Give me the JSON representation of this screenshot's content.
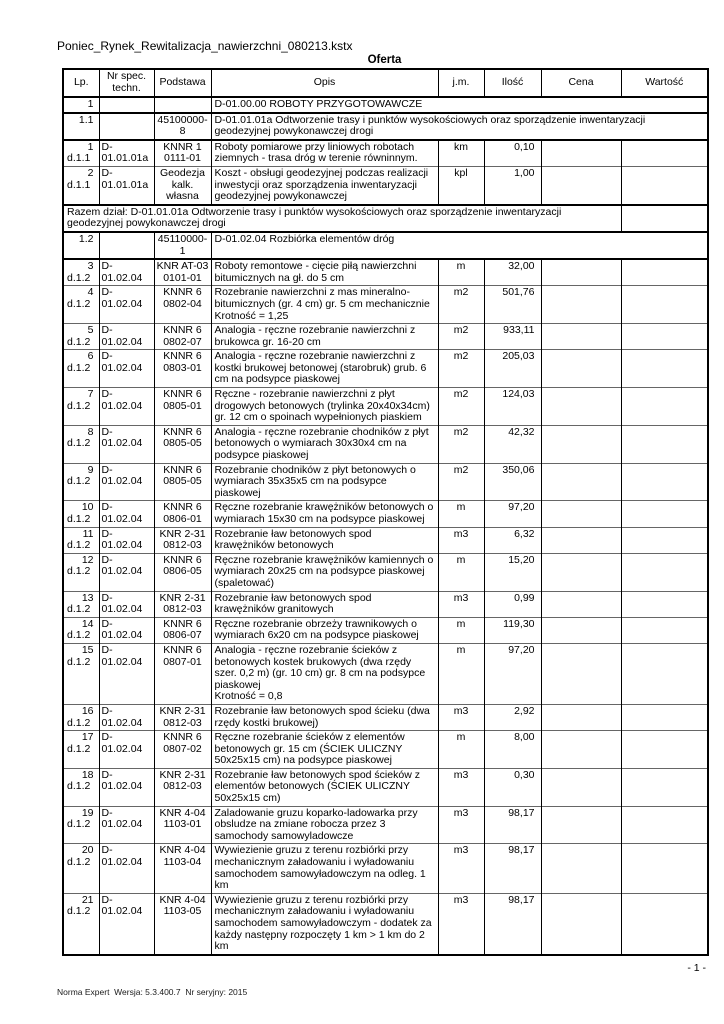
{
  "page": {
    "title": "Poniec_Rynek_Rewitalizacja_nawierzchni_080213.kstx",
    "subtitle": "Oferta",
    "footer": "Norma Expert  Wersja: 5.3.400.7  Nr seryjny: 2015",
    "page_number": "- 1 -"
  },
  "table": {
    "columns": [
      "Lp.",
      "Nr spec. techn.",
      "Podstawa",
      "Opis",
      "j.m.",
      "Ilość",
      "Cena",
      "Wartość"
    ],
    "rows": [
      {
        "type": "section",
        "lp": "1",
        "podstawa": "",
        "opis": "D-01.00.00 ROBOTY PRZYGOTOWAWCZE"
      },
      {
        "type": "section",
        "lp": "1.1",
        "podstawa": "45100000-8",
        "opis": "D-01.01.01a Odtworzenie trasy i punktów wysokościowych oraz sporządzenie inwentaryzacji geodezyjnej powykonawczej drogi"
      },
      {
        "type": "item",
        "lp": "1",
        "dz": "d.1.1",
        "spec": "D-01.01.01a",
        "podstawa": [
          "KNNR 1",
          "0111-01"
        ],
        "opis": "Roboty pomiarowe przy liniowych robotach ziemnych - trasa dróg w terenie równinnym.",
        "jm": "km",
        "ilosc": "0,10"
      },
      {
        "type": "item",
        "lp": "2",
        "dz": "d.1.1",
        "spec": "D-01.01.01a",
        "podstawa": [
          "Geodezja",
          "kalk. własna"
        ],
        "opis": "Koszt - obsługi geodezyjnej podczas realizacji inwestycji oraz sporządzenia inwentaryzacji geodezyjnej powykonawczej",
        "jm": "kpl",
        "ilosc": "1,00"
      },
      {
        "type": "summary",
        "opis": "Razem dział: D-01.01.01a Odtworzenie trasy i punktów wysokościowych oraz sporządzenie inwentaryzacji geodezyjnej powykonawczej drogi"
      },
      {
        "type": "section",
        "lp": "1.2",
        "podstawa": "45110000-1",
        "opis": "D-01.02.04 Rozbiórka elementów dróg"
      },
      {
        "type": "item",
        "lp": "3",
        "dz": "d.1.2",
        "spec": "D-01.02.04",
        "podstawa": [
          "KNR AT-03",
          "0101-01"
        ],
        "opis": "Roboty remontowe - cięcie piłą nawierzchni bitumicznych na gł. do 5 cm",
        "jm": "m",
        "ilosc": "32,00"
      },
      {
        "type": "item",
        "lp": "4",
        "dz": "d.1.2",
        "spec": "D-01.02.04",
        "podstawa": [
          "KNNR 6",
          "0802-04"
        ],
        "opis": "Rozebranie nawierzchni z mas mineralno-bitumicznych (gr. 4 cm) gr. 5 cm mechanicznie",
        "opis2": "Krotność = 1,25",
        "jm": "m2",
        "ilosc": "501,76"
      },
      {
        "type": "item",
        "lp": "5",
        "dz": "d.1.2",
        "spec": "D-01.02.04",
        "podstawa": [
          "KNNR 6",
          "0802-07"
        ],
        "opis": "Analogia - ręczne rozebranie nawierzchni z brukowca gr. 16-20 cm",
        "jm": "m2",
        "ilosc": "933,11"
      },
      {
        "type": "item",
        "lp": "6",
        "dz": "d.1.2",
        "spec": "D-01.02.04",
        "podstawa": [
          "KNNR 6",
          "0803-01"
        ],
        "opis": "Analogia - ręczne rozebranie nawierzchni z kostki brukowej betonowej (starobruk) grub. 6 cm na podsypce piaskowej",
        "jm": "m2",
        "ilosc": "205,03"
      },
      {
        "type": "item",
        "lp": "7",
        "dz": "d.1.2",
        "spec": "D-01.02.04",
        "podstawa": [
          "KNNR 6",
          "0805-01"
        ],
        "opis": "Ręczne - rozebranie nawierzchni z płyt drogowych betonowych (trylinka 20x40x34cm) gr. 12 cm o spoinach wypełnionych piaskiem",
        "jm": "m2",
        "ilosc": "124,03"
      },
      {
        "type": "item",
        "lp": "8",
        "dz": "d.1.2",
        "spec": "D-01.02.04",
        "podstawa": [
          "KNNR 6",
          "0805-05"
        ],
        "opis": "Analogia - ręczne rozebranie chodników z płyt betonowych o wymiarach 30x30x4 cm na podsypce piaskowej",
        "jm": "m2",
        "ilosc": "42,32"
      },
      {
        "type": "item",
        "lp": "9",
        "dz": "d.1.2",
        "spec": "D-01.02.04",
        "podstawa": [
          "KNNR 6",
          "0805-05"
        ],
        "opis": "Rozebranie chodników z płyt betonowych o wymiarach 35x35x5 cm na podsypce piaskowej",
        "jm": "m2",
        "ilosc": "350,06"
      },
      {
        "type": "item",
        "lp": "10",
        "dz": "d.1.2",
        "spec": "D-01.02.04",
        "podstawa": [
          "KNNR 6",
          "0806-01"
        ],
        "opis": "Ręczne rozebranie krawężników betonowych o wymiarach 15x30 cm na podsypce piaskowej",
        "jm": "m",
        "ilosc": "97,20"
      },
      {
        "type": "item",
        "lp": "11",
        "dz": "d.1.2",
        "spec": "D-01.02.04",
        "podstawa": [
          "KNR 2-31",
          "0812-03"
        ],
        "opis": "Rozebranie ław betonowych spod krawężników betonowych",
        "jm": "m3",
        "ilosc": "6,32"
      },
      {
        "type": "item",
        "lp": "12",
        "dz": "d.1.2",
        "spec": "D-01.02.04",
        "podstawa": [
          "KNNR 6",
          "0806-05"
        ],
        "opis": "Ręczne rozebranie krawężników kamiennych o wymiarach 20x25 cm na podsypce piaskowej (spaletować)",
        "jm": "m",
        "ilosc": "15,20"
      },
      {
        "type": "item",
        "lp": "13",
        "dz": "d.1.2",
        "spec": "D-01.02.04",
        "podstawa": [
          "KNR 2-31",
          "0812-03"
        ],
        "opis": "Rozebranie ław betonowych spod krawężników granitowych",
        "jm": "m3",
        "ilosc": "0,99"
      },
      {
        "type": "item",
        "lp": "14",
        "dz": "d.1.2",
        "spec": "D-01.02.04",
        "podstawa": [
          "KNNR 6",
          "0806-07"
        ],
        "opis": "Ręczne rozebranie obrzeży trawnikowych o wymiarach 6x20 cm na podsypce piaskowej",
        "jm": "m",
        "ilosc": "119,30"
      },
      {
        "type": "item",
        "lp": "15",
        "dz": "d.1.2",
        "spec": "D-01.02.04",
        "podstawa": [
          "KNNR 6",
          "0807-01"
        ],
        "opis": "Analogia - ręczne rozebranie ścieków z betonowych kostek brukowych (dwa rzędy szer. 0,2 m) (gr. 10 cm) gr. 8 cm na podsypce piaskowej",
        "opis2": "Krotność = 0,8",
        "jm": "m",
        "ilosc": "97,20"
      },
      {
        "type": "item",
        "lp": "16",
        "dz": "d.1.2",
        "spec": "D-01.02.04",
        "podstawa": [
          "KNR 2-31",
          "0812-03"
        ],
        "opis": "Rozebranie ław betonowych spod ścieku (dwa rzędy kostki brukowej)",
        "jm": "m3",
        "ilosc": "2,92"
      },
      {
        "type": "item",
        "lp": "17",
        "dz": "d.1.2",
        "spec": "D-01.02.04",
        "podstawa": [
          "KNNR 6",
          "0807-02"
        ],
        "opis": "Ręczne rozebranie ścieków z elementów betonowych gr. 15 cm (ŚCIEK ULICZNY 50x25x15 cm) na podsypce piaskowej",
        "jm": "m",
        "ilosc": "8,00"
      },
      {
        "type": "item",
        "lp": "18",
        "dz": "d.1.2",
        "spec": "D-01.02.04",
        "podstawa": [
          "KNR 2-31",
          "0812-03"
        ],
        "opis": "Rozebranie ław betonowych spod ścieków z elementów betonowych (ŚCIEK ULICZNY 50x25x15 cm)",
        "jm": "m3",
        "ilosc": "0,30"
      },
      {
        "type": "item",
        "lp": "19",
        "dz": "d.1.2",
        "spec": "D-01.02.04",
        "podstawa": [
          "KNR 4-04",
          "1103-01"
        ],
        "opis": "Zaladowanie gruzu koparko-ladowarka przy obsludze na zmiane robocza przez 3 samochody samowyladowcze",
        "jm": "m3",
        "ilosc": "98,17"
      },
      {
        "type": "item",
        "lp": "20",
        "dz": "d.1.2",
        "spec": "D-01.02.04",
        "podstawa": [
          "KNR 4-04",
          "1103-04"
        ],
        "opis": "Wywiezienie gruzu z terenu rozbiórki przy mechanicznym załadowaniu i wyładowaniu samochodem samowyładowczym na odleg. 1 km",
        "jm": "m3",
        "ilosc": "98,17"
      },
      {
        "type": "item",
        "lp": "21",
        "dz": "d.1.2",
        "spec": "D-01.02.04",
        "podstawa": [
          "KNR 4-04",
          "1103-05"
        ],
        "opis": "Wywiezienie gruzu z terenu rozbiórki przy mechanicznym załadowaniu i wyładowaniu samochodem samowyładowczym - dodatek za każdy następny rozpoczęty 1 km > 1 km do 2 km",
        "jm": "m3",
        "ilosc": "98,17"
      }
    ]
  }
}
